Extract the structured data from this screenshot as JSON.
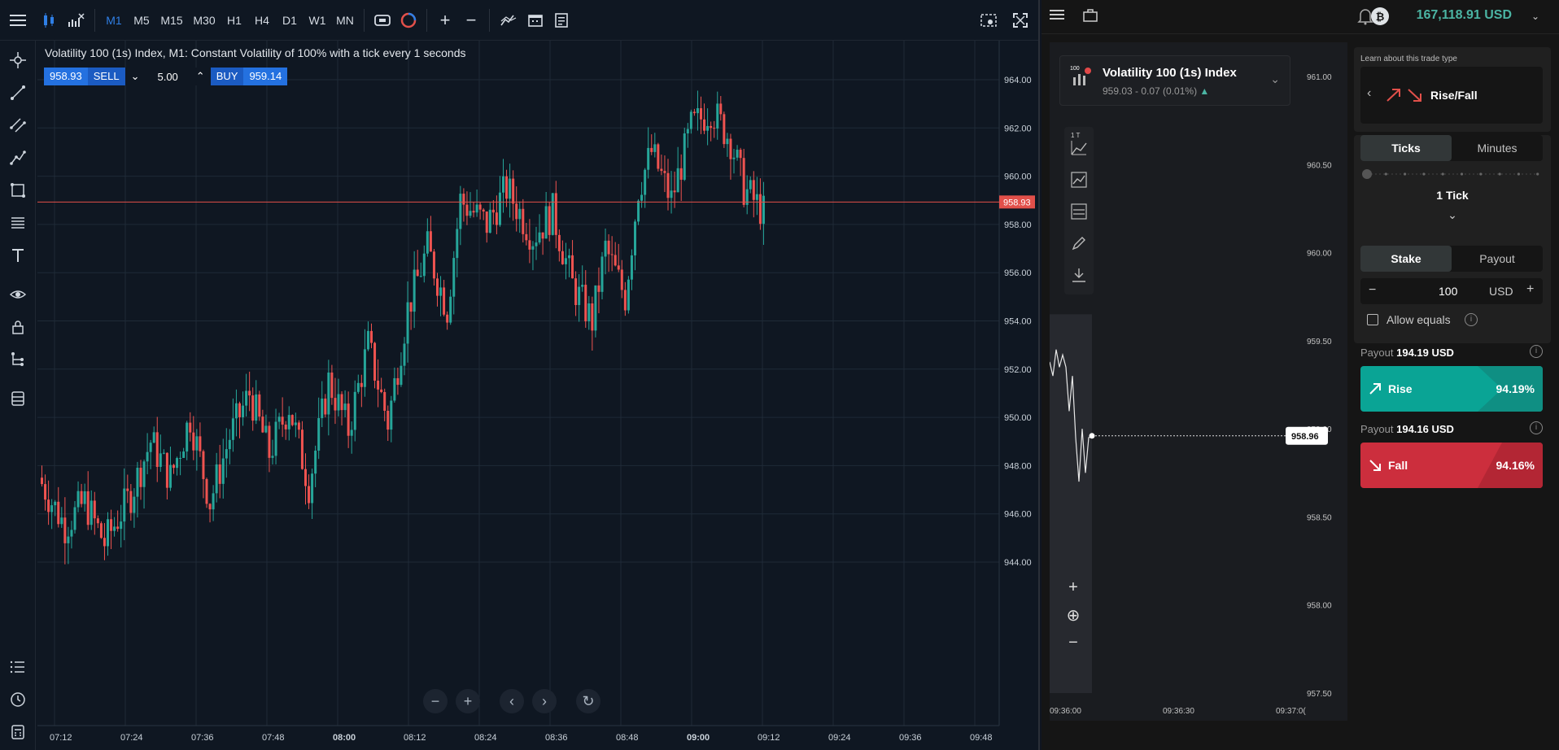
{
  "toolbar": {
    "timeframes": [
      "M1",
      "M5",
      "M15",
      "M30",
      "H1",
      "H4",
      "D1",
      "W1",
      "MN"
    ],
    "active_timeframe": "M1"
  },
  "chart": {
    "title": "Volatility 100 (1s) Index, M1: Constant Volatility of 100% with a tick every 1 seconds",
    "sell_price": "958.93",
    "sell_label": "SELL",
    "volume": "5.00",
    "buy_label": "BUY",
    "buy_price": "959.14",
    "current_price_tag": "958.93",
    "y_ticks": [
      "964.00",
      "962.00",
      "960.00",
      "958.00",
      "956.00",
      "954.00",
      "952.00",
      "950.00",
      "948.00",
      "946.00",
      "944.00"
    ],
    "x_ticks": [
      "07:12",
      "07:24",
      "07:36",
      "07:48",
      "08:00",
      "08:12",
      "08:24",
      "08:36",
      "08:48",
      "09:00",
      "09:12",
      "09:24",
      "09:36",
      "09:48"
    ]
  },
  "deriv": {
    "balance": "167,118.91 USD",
    "currency_coin": "₿",
    "symbol_name": "Volatility 100 (1s) Index",
    "symbol_quote": "959.03 - 0.07 (0.01%)",
    "symbol_badge": "100",
    "chart_type_badge": "1 T",
    "y_ticks": [
      "961.00",
      "960.50",
      "960.00",
      "959.50",
      "959.00",
      "958.50",
      "958.00",
      "957.50"
    ],
    "x_ticks": [
      "09:36:00",
      "09:36:30",
      "09:37:0("
    ],
    "spot_price": "958.96",
    "learn_link": "Learn about this trade type",
    "trade_type": "Rise/Fall",
    "duration_tabs": [
      "Ticks",
      "Minutes"
    ],
    "duration_value": "1 Tick",
    "stake_tabs": [
      "Stake",
      "Payout"
    ],
    "stake_amount": "100",
    "stake_currency": "USD",
    "allow_equals": "Allow equals",
    "rise": {
      "payout_label": "Payout",
      "payout_value": "194.19 USD",
      "label": "Rise",
      "percent": "94.19%"
    },
    "fall": {
      "payout_label": "Payout",
      "payout_value": "194.16 USD",
      "label": "Fall",
      "percent": "94.16%"
    }
  },
  "colors": {
    "bull": "#26a69a",
    "bear": "#ef5350",
    "accent": "#2f7fe6",
    "rise": "#0aa495",
    "fall": "#cc2e3d"
  }
}
